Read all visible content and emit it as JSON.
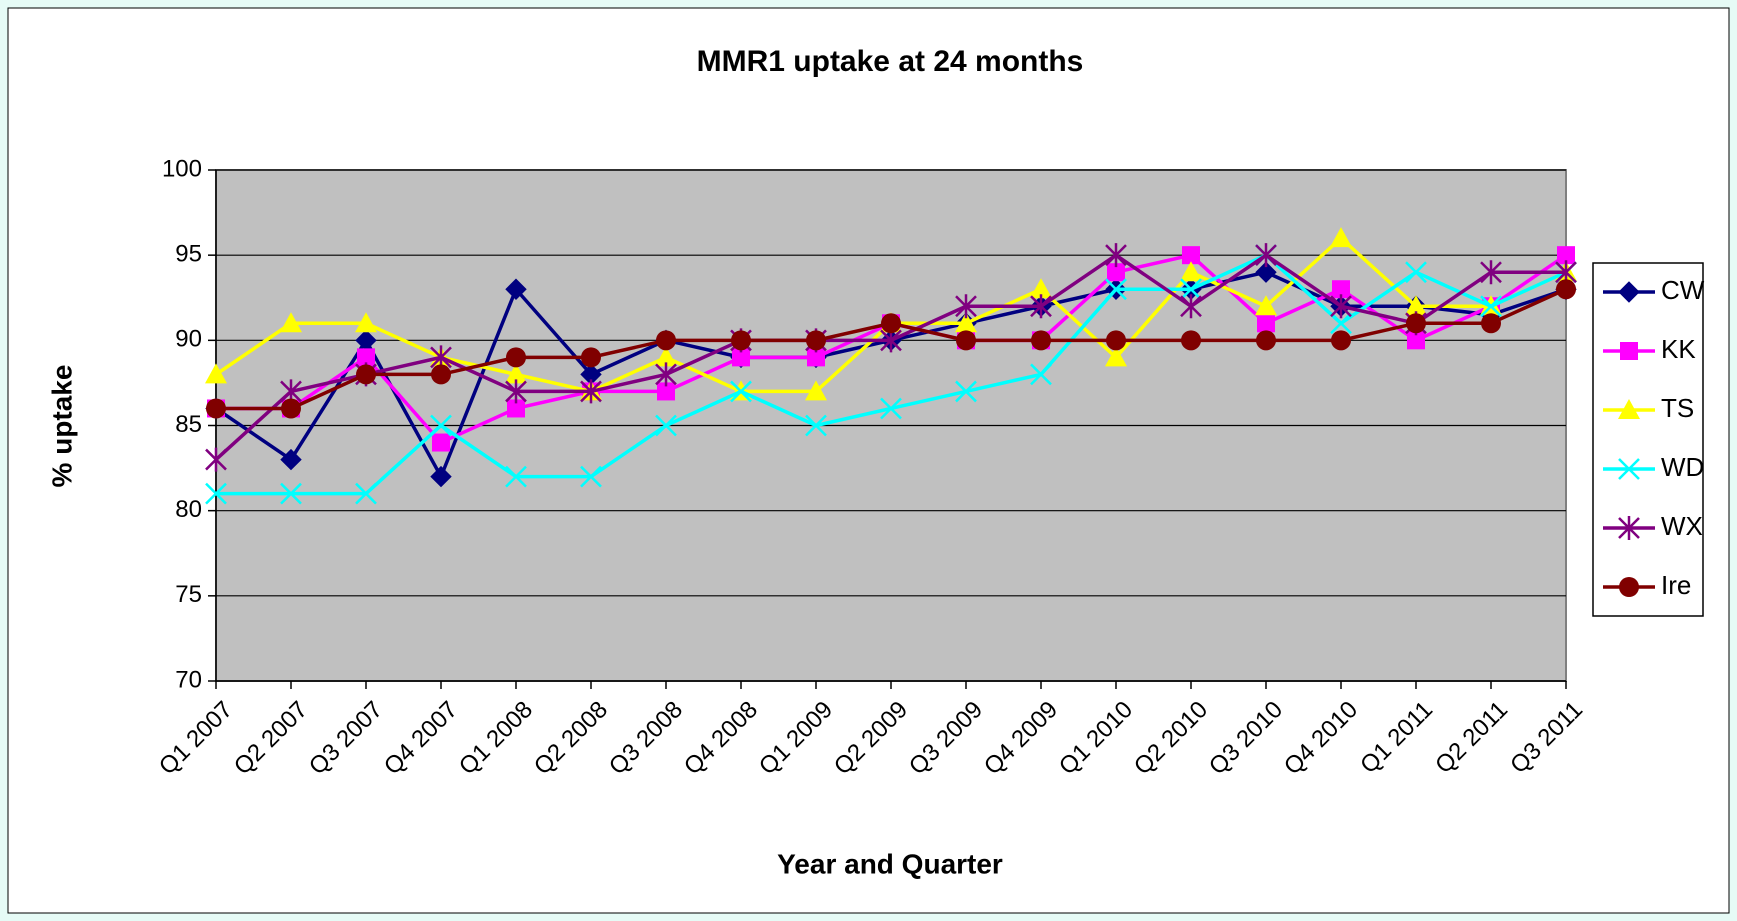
{
  "chart_data": {
    "type": "line",
    "title": "MMR1 uptake at 24 months",
    "x_label": "Year and Quarter",
    "y_label": "% uptake",
    "categories": [
      "Q1 2007",
      "Q2 2007",
      "Q3 2007",
      "Q4 2007",
      "Q1 2008",
      "Q2 2008",
      "Q3 2008",
      "Q4 2008",
      "Q1 2009",
      "Q2 2009",
      "Q3 2009",
      "Q4 2009",
      "Q1 2010",
      "Q2 2010",
      "Q3 2010",
      "Q4 2010",
      "Q1 2011",
      "Q2 2011",
      "Q3 2011"
    ],
    "ylim": [
      70,
      100
    ],
    "yticks": [
      70,
      75,
      80,
      85,
      90,
      95,
      100
    ],
    "grid": true,
    "series": [
      {
        "name": "CW",
        "color": "#000080",
        "marker": "diamond",
        "values": [
          86,
          83,
          90,
          82,
          93,
          88,
          90,
          89,
          89,
          90,
          91,
          92,
          93,
          93,
          94,
          92,
          92,
          91.5,
          93
        ]
      },
      {
        "name": "KK",
        "color": "#ff00ff",
        "marker": "square",
        "values": [
          86,
          86,
          89,
          84,
          86,
          87,
          87,
          89,
          89,
          91,
          90,
          90,
          94,
          95,
          91,
          93,
          90,
          92,
          95
        ]
      },
      {
        "name": "TS",
        "color": "#ffff00",
        "marker": "triangle",
        "values": [
          88,
          91,
          91,
          89,
          88,
          87,
          89,
          87,
          87,
          91,
          91,
          93,
          89,
          94,
          92,
          96,
          92,
          92,
          94
        ]
      },
      {
        "name": "WD",
        "color": "#00ffff",
        "marker": "x",
        "values": [
          81,
          81,
          81,
          85,
          82,
          82,
          85,
          87,
          85,
          86,
          87,
          88,
          93,
          93,
          95,
          91,
          94,
          92,
          94
        ]
      },
      {
        "name": "WX",
        "color": "#800080",
        "marker": "star",
        "values": [
          83,
          87,
          88,
          89,
          87,
          87,
          88,
          90,
          90,
          90,
          92,
          92,
          95,
          92,
          95,
          92,
          91,
          94,
          94
        ]
      },
      {
        "name": "Ire",
        "color": "#800000",
        "marker": "circle",
        "values": [
          86,
          86,
          88,
          88,
          89,
          89,
          90,
          90,
          90,
          91,
          90,
          90,
          90,
          90,
          90,
          90,
          91,
          91,
          93
        ]
      }
    ]
  }
}
